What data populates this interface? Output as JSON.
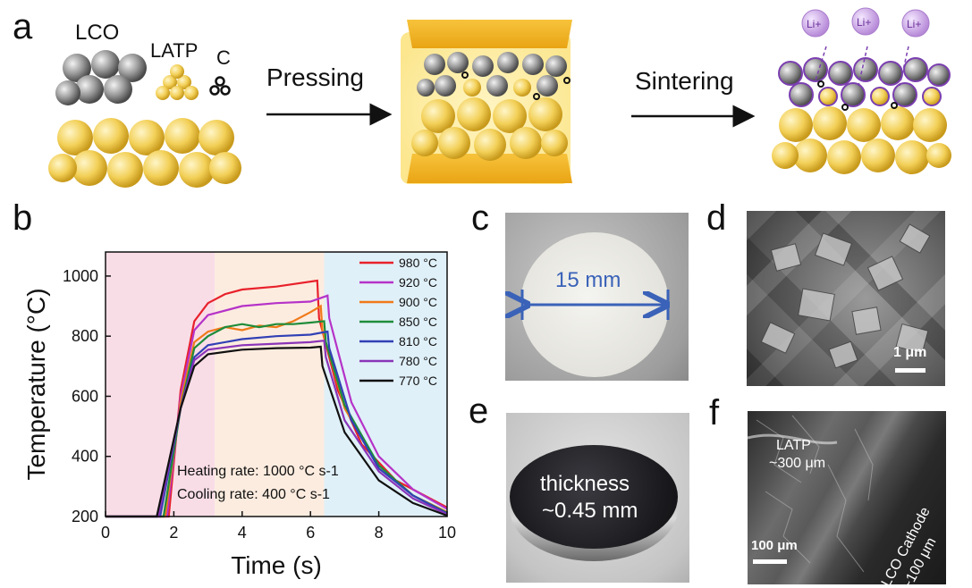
{
  "panel_labels": {
    "a": "a",
    "b": "b",
    "c": "c",
    "d": "d",
    "e": "e",
    "f": "f"
  },
  "schematic": {
    "material_lco": "LCO",
    "material_latp": "LATP",
    "material_c": "C",
    "step1": "Pressing",
    "step2": "Sintering",
    "ion_label": "Li+"
  },
  "chart_data": {
    "type": "line",
    "xlabel": "Time (s)",
    "ylabel": "Temperature (°C)",
    "xlim": [
      0,
      10
    ],
    "ylim": [
      200,
      1080
    ],
    "xticks": [
      0,
      2,
      4,
      6,
      8,
      10
    ],
    "yticks": [
      200,
      400,
      600,
      800,
      1000
    ],
    "grid": false,
    "legend_position": "top-right",
    "background_regions": [
      {
        "x0": 0,
        "x1": 3.2,
        "color": "#f9dde6"
      },
      {
        "x0": 3.2,
        "x1": 6.4,
        "color": "#fcecdf"
      },
      {
        "x0": 6.4,
        "x1": 10,
        "color": "#e0f0f8"
      }
    ],
    "annotations": [
      "Heating rate: 1000 °C s-1",
      "Cooling rate: 400 °C s-1"
    ],
    "series": [
      {
        "name": "980 °C",
        "color": "#e8212b",
        "x": [
          0,
          1.85,
          2.2,
          2.6,
          3.0,
          3.5,
          4.0,
          5.0,
          6.2,
          6.25,
          6.8,
          7.5,
          8.5,
          10
        ],
        "y": [
          200,
          200,
          620,
          850,
          910,
          940,
          955,
          965,
          985,
          860,
          620,
          440,
          320,
          230
        ]
      },
      {
        "name": "920 °C",
        "color": "#b533c8",
        "x": [
          0,
          1.8,
          2.2,
          2.6,
          3.0,
          4.0,
          5.0,
          6.0,
          6.5,
          6.55,
          7.2,
          8.0,
          9.0,
          10
        ],
        "y": [
          200,
          200,
          600,
          820,
          870,
          900,
          910,
          915,
          935,
          860,
          580,
          400,
          290,
          225
        ]
      },
      {
        "name": "900 °C",
        "color": "#f07a1a",
        "x": [
          0,
          1.75,
          2.2,
          2.6,
          3.0,
          3.5,
          4.0,
          4.5,
          5.0,
          5.5,
          6.0,
          6.3,
          6.35,
          7.0,
          8.0,
          9.0,
          10
        ],
        "y": [
          200,
          200,
          580,
          780,
          815,
          830,
          820,
          835,
          830,
          850,
          880,
          900,
          820,
          560,
          370,
          270,
          215
        ]
      },
      {
        "name": "850 °C",
        "color": "#1e8c3a",
        "x": [
          0,
          1.7,
          2.2,
          2.6,
          3.0,
          3.5,
          4.0,
          4.5,
          5.0,
          5.5,
          6.0,
          6.4,
          6.45,
          7.0,
          8.0,
          9.0,
          10
        ],
        "y": [
          200,
          200,
          560,
          760,
          800,
          830,
          840,
          830,
          840,
          840,
          845,
          850,
          780,
          570,
          370,
          270,
          212
        ]
      },
      {
        "name": "810 °C",
        "color": "#3140b5",
        "x": [
          0,
          1.6,
          2.2,
          2.6,
          3.0,
          4.0,
          5.0,
          6.0,
          6.5,
          6.55,
          7.2,
          8.0,
          9.0,
          10
        ],
        "y": [
          200,
          200,
          560,
          730,
          770,
          790,
          800,
          805,
          815,
          760,
          520,
          360,
          270,
          210
        ]
      },
      {
        "name": "780 °C",
        "color": "#8a34b8",
        "x": [
          0,
          1.55,
          2.2,
          2.6,
          3.0,
          4.0,
          5.0,
          6.0,
          6.4,
          6.45,
          7.0,
          8.0,
          9.0,
          10
        ],
        "y": [
          200,
          200,
          560,
          720,
          755,
          770,
          775,
          780,
          785,
          730,
          520,
          350,
          260,
          207
        ]
      },
      {
        "name": "770 °C",
        "color": "#111111",
        "x": [
          0,
          1.5,
          2.2,
          2.6,
          3.0,
          4.0,
          5.0,
          6.0,
          6.3,
          6.35,
          7.0,
          8.0,
          9.0,
          10
        ],
        "y": [
          200,
          200,
          560,
          700,
          740,
          755,
          760,
          762,
          765,
          700,
          480,
          320,
          245,
          203
        ]
      }
    ]
  },
  "photo_c": {
    "dimension_label": "15 mm",
    "arrow_color": "#3a62b8"
  },
  "sem_d": {
    "scale_label": "1 μm"
  },
  "photo_e": {
    "line1": "thickness",
    "line2": "~0.45 mm"
  },
  "sem_f": {
    "scale_label": "100 μm",
    "latp_line1": "LATP",
    "latp_line2": "~300 μm",
    "lco_line1": "LCO Cathode",
    "lco_line2": "~100 μm"
  },
  "colors": {
    "latp_yellow": "#f2cf56",
    "lco_gray": "#8c8c8c",
    "plate_orange": "#f3b320",
    "li_purple": "#c9a4e6"
  }
}
